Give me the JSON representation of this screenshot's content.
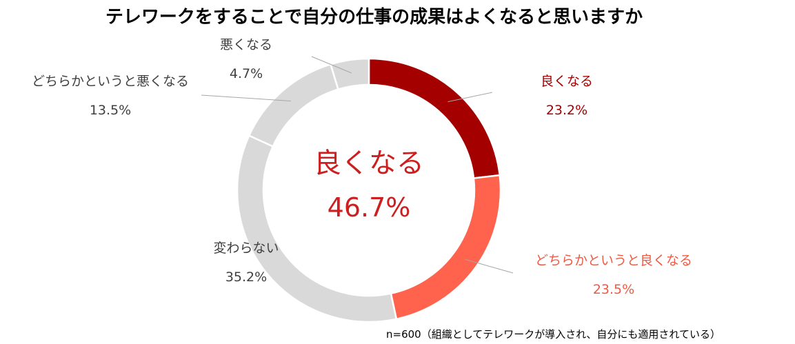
{
  "title": "テレワークをすることで自分の仕事の成果はよくなると思いますか",
  "center": {
    "label": "良くなる",
    "value": "46.7%"
  },
  "note": "n=600（組織としてテレワークが導入され、自分にも適用されている）",
  "colors": {
    "good": "#a50000",
    "somewhat_good": "#ff624d",
    "neutral": "#d9d9d9",
    "leader": "#a6a6a6",
    "center_text": "#cc1f1f"
  },
  "chart_data": {
    "type": "pie",
    "donut": true,
    "title": "テレワークをすることで自分の仕事の成果はよくなると思いますか",
    "slices": [
      {
        "label": "良くなる",
        "value": 23.2,
        "value_label": "23.2%",
        "color": "#a50000",
        "label_color": "#a50000"
      },
      {
        "label": "どちらかというと良くなる",
        "value": 23.5,
        "value_label": "23.5%",
        "color": "#ff624d",
        "label_color": "#ef5a45"
      },
      {
        "label": "変わらない",
        "value": 35.2,
        "value_label": "35.2%",
        "color": "#d9d9d9",
        "label_color": "#404040"
      },
      {
        "label": "どちらかというと悪くなる",
        "value": 13.5,
        "value_label": "13.5%",
        "color": "#d9d9d9",
        "label_color": "#404040"
      },
      {
        "label": "悪くなる",
        "value": 4.7,
        "value_label": "4.7%",
        "color": "#d9d9d9",
        "label_color": "#404040"
      }
    ]
  }
}
